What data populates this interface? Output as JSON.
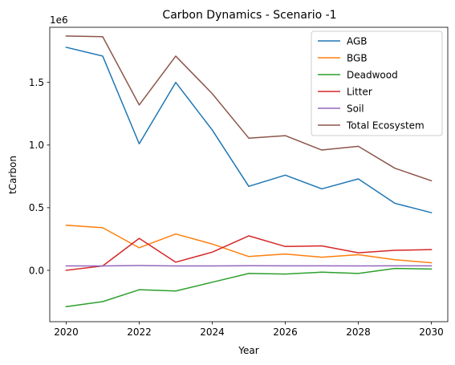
{
  "chart_data": {
    "type": "line",
    "title": "Carbon Dynamics - Scenario -1",
    "xlabel": "Year",
    "ylabel": "tCarbon",
    "y_offset_label": "1e6",
    "xlim": [
      2019.55,
      2030.45
    ],
    "ylim": [
      -0.41,
      1.94
    ],
    "xticks": [
      2020,
      2022,
      2024,
      2026,
      2028,
      2030
    ],
    "yticks": [
      0.0,
      0.5,
      1.0,
      1.5
    ],
    "ytick_labels": [
      "0.0",
      "0.5",
      "1.0",
      "1.5"
    ],
    "grid": false,
    "legend_position": "top-right",
    "x": [
      2020,
      2021,
      2022,
      2023,
      2024,
      2025,
      2026,
      2027,
      2028,
      2029,
      2030
    ],
    "series": [
      {
        "name": "AGB",
        "color": "#1f77b4",
        "values": [
          1.78,
          1.71,
          1.01,
          1.5,
          1.12,
          0.67,
          0.76,
          0.65,
          0.73,
          0.535,
          0.46
        ]
      },
      {
        "name": "BGB",
        "color": "#ff7f0e",
        "values": [
          0.36,
          0.34,
          0.18,
          0.29,
          0.21,
          0.11,
          0.13,
          0.105,
          0.125,
          0.085,
          0.06
        ]
      },
      {
        "name": "Deadwood",
        "color": "#2ca02c",
        "values": [
          -0.29,
          -0.25,
          -0.155,
          -0.165,
          -0.095,
          -0.025,
          -0.03,
          -0.015,
          -0.025,
          0.015,
          0.01
        ]
      },
      {
        "name": "Litter",
        "color": "#d62728",
        "values": [
          0.0,
          0.035,
          0.255,
          0.065,
          0.145,
          0.275,
          0.19,
          0.195,
          0.14,
          0.16,
          0.165
        ]
      },
      {
        "name": "Soil",
        "color": "#9467bd",
        "values": [
          0.035,
          0.035,
          0.038,
          0.035,
          0.035,
          0.037,
          0.036,
          0.036,
          0.035,
          0.036,
          0.036
        ]
      },
      {
        "name": "Total Ecosystem",
        "color": "#8c564b",
        "values": [
          1.87,
          1.865,
          1.32,
          1.71,
          1.41,
          1.055,
          1.075,
          0.96,
          0.99,
          0.815,
          0.715
        ]
      }
    ]
  }
}
